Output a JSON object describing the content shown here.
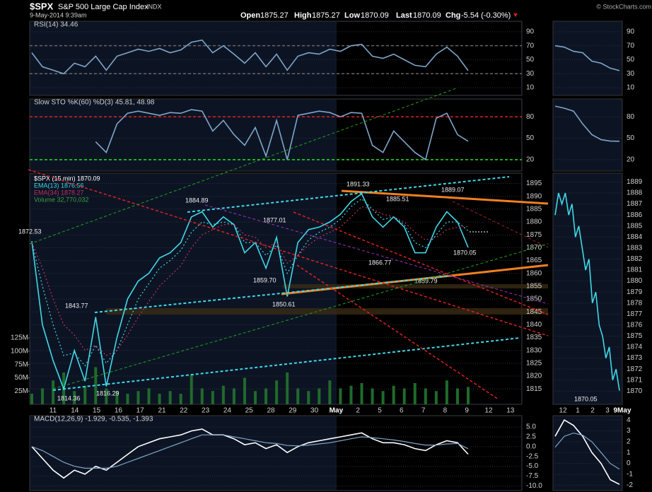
{
  "header": {
    "symbol": "$SPX",
    "name": "S&P 500 Large Cap Index",
    "exchange": "INDX",
    "date": "9-May-2014 9:39am",
    "quote": [
      [
        "Open",
        "1875.27"
      ],
      [
        "High",
        "1875.27"
      ],
      [
        "Low",
        "1870.09"
      ],
      [
        "Last",
        "1870.09"
      ],
      [
        "Chg",
        "-5.54 (-0.30%)"
      ]
    ],
    "credit": "© StockCharts.com"
  },
  "chart_data": [
    {
      "type": "line",
      "title": "RSI(14) 34.46",
      "ylim": [
        -1,
        105
      ],
      "yticks": [
        10,
        30,
        50,
        70,
        90
      ],
      "reference_lines": [
        {
          "value": 70,
          "color": "#666666"
        },
        {
          "value": 30,
          "color": "#666666"
        }
      ],
      "series": [
        {
          "color": "#7fa6c9",
          "values": [
            60,
            40,
            35,
            30,
            45,
            40,
            55,
            35,
            55,
            60,
            65,
            62,
            66,
            60,
            64,
            75,
            78,
            60,
            70,
            58,
            45,
            60,
            40,
            58,
            35,
            55,
            60,
            58,
            65,
            62,
            70,
            72,
            55,
            52,
            58,
            50,
            42,
            40,
            58,
            68,
            55,
            34.46
          ]
        }
      ]
    },
    {
      "type": "line",
      "title": "Slow STO %K(60) %D(3) 45.81, 48.98",
      "ylim": [
        4,
        105
      ],
      "yticks": [
        20,
        50,
        80
      ],
      "reference_lines": [
        {
          "value": 80,
          "color": "#e02020"
        },
        {
          "value": 20,
          "color": "#20e020"
        }
      ],
      "series": [
        {
          "color": "#7fa6c9",
          "values": [
            null,
            null,
            null,
            null,
            null,
            null,
            45,
            30,
            70,
            85,
            88,
            85,
            82,
            86,
            85,
            90,
            88,
            60,
            75,
            55,
            40,
            65,
            25,
            75,
            20,
            82,
            85,
            88,
            86,
            80,
            86,
            85,
            40,
            30,
            60,
            45,
            30,
            20,
            78,
            85,
            55,
            45.81
          ]
        }
      ]
    },
    {
      "type": "line",
      "legend": [
        "$SPX (15 min) 1870.09",
        "EMA(13) 1876.56",
        "EMA(34) 1878.27",
        "Volume 32,770,032"
      ],
      "ylim": [
        1809,
        1899
      ],
      "yticks": [
        1815,
        1820,
        1825,
        1830,
        1835,
        1840,
        1845,
        1850,
        1855,
        1860,
        1865,
        1870,
        1875,
        1880,
        1885,
        1890,
        1895
      ],
      "xaxis_labels": [
        "11",
        "14",
        "15",
        "16",
        "17",
        "21",
        "22",
        "23",
        "24",
        "25",
        "28",
        "29",
        "30",
        "May",
        "2",
        "5",
        "6",
        "7",
        "8",
        "9",
        "12",
        "13"
      ],
      "series": [
        {
          "color": "#40d8e8",
          "values": [
            1872.53,
            1840,
            1826,
            1815,
            1830,
            1818,
            1843,
            1816,
            1835,
            1850,
            1857,
            1860,
            1866,
            1868,
            1872,
            1882,
            1884,
            1878,
            1882,
            1879,
            1868,
            1872,
            1862,
            1874,
            1851,
            1872,
            1877,
            1878,
            1880,
            1883,
            1888,
            1891,
            1882,
            1878,
            1882,
            1878,
            1868,
            1868,
            1878,
            1884,
            1880,
            1870.09
          ]
        },
        {
          "color": "#40d8e8",
          "dash": "2,3",
          "values": [
            1872,
            1855,
            1840,
            1828,
            1829,
            1824,
            1832,
            1825,
            1830,
            1840,
            1850,
            1856,
            1862,
            1865,
            1869,
            1876,
            1880,
            1879,
            1880,
            1879,
            1872,
            1872,
            1867,
            1871,
            1860,
            1867,
            1873,
            1876,
            1878,
            1881,
            1886,
            1889,
            1885,
            1881,
            1882,
            1879,
            1872,
            1870,
            1875,
            1880,
            1880,
            1876.56
          ]
        },
        {
          "color": "#c03060",
          "dash": "2,3",
          "values": [
            1872,
            1862,
            1850,
            1840,
            1836,
            1830,
            1832,
            1828,
            1830,
            1836,
            1843,
            1849,
            1855,
            1859,
            1863,
            1870,
            1875,
            1877,
            1879,
            1879,
            1875,
            1874,
            1870,
            1872,
            1864,
            1867,
            1871,
            1874,
            1876,
            1878,
            1882,
            1886,
            1885,
            1883,
            1882,
            1880,
            1876,
            1873,
            1874,
            1877,
            1878,
            1878.27
          ]
        }
      ],
      "volume": {
        "color": "#1f6b2a",
        "ylim": [
          0,
          435000000
        ],
        "yticks": [
          {
            "value": 25000000,
            "label": "25M"
          },
          {
            "value": 50000000,
            "label": "50M"
          },
          {
            "value": 75000000,
            "label": "75M"
          },
          {
            "value": 100000000,
            "label": "100M"
          },
          {
            "value": 125000000,
            "label": "125M"
          }
        ],
        "values": [
          20000000,
          30000000,
          45000000,
          60000000,
          25000000,
          35000000,
          70000000,
          30000000,
          25000000,
          20000000,
          25000000,
          30000000,
          20000000,
          25000000,
          20000000,
          55000000,
          30000000,
          25000000,
          35000000,
          30000000,
          50000000,
          25000000,
          30000000,
          45000000,
          60000000,
          30000000,
          25000000,
          30000000,
          45000000,
          30000000,
          35000000,
          40000000,
          30000000,
          25000000,
          35000000,
          30000000,
          40000000,
          30000000,
          25000000,
          45000000,
          30000000,
          32770032
        ]
      },
      "annotations": [
        "1872.53",
        "1884.89",
        "1877.01",
        "1891.33",
        "1885.51",
        "1889.07",
        "1859.70",
        "1850.61",
        "1866.77",
        "1859.79",
        "1870.05",
        "1843.77",
        "1814.36",
        "1816.29"
      ]
    },
    {
      "type": "line",
      "title": "MACD(12,26,9) -1.929, -0.535, -1.393",
      "ylim": [
        -11.2,
        7.9
      ],
      "yticks": [
        {
          "value": -10,
          "label": "-10.0"
        },
        {
          "value": -7.5,
          "label": "-7.5"
        },
        {
          "value": -5,
          "label": "-5.0"
        },
        {
          "value": -2.5,
          "label": "-2.5"
        },
        {
          "value": 0,
          "label": "0.0"
        },
        2.5,
        {
          "value": 5,
          "label": "5.0"
        }
      ],
      "series": [
        {
          "color": "#ffffff",
          "values": [
            0,
            -3,
            -6,
            -8,
            -6,
            -7,
            -5,
            -6,
            -4,
            -2,
            0,
            1,
            2,
            2.5,
            3,
            4,
            4.5,
            3,
            3,
            2,
            0.5,
            1,
            -0.5,
            0.5,
            -1.5,
            0,
            1,
            1.5,
            2,
            2.5,
            3,
            3.5,
            2,
            1,
            1,
            0.5,
            -0.5,
            -1,
            0.5,
            1.5,
            1,
            -1.929
          ]
        },
        {
          "color": "#7fa6c9",
          "values": [
            0,
            -1,
            -2.5,
            -4,
            -5,
            -5.5,
            -5.5,
            -5.5,
            -5,
            -4,
            -3,
            -2,
            -1,
            0,
            1,
            2,
            3,
            3,
            3,
            2.5,
            2,
            1.5,
            1,
            0.8,
            0.3,
            0.2,
            0.4,
            0.7,
            1,
            1.5,
            2,
            2.5,
            2.3,
            2,
            1.7,
            1.3,
            0.8,
            0.4,
            0.4,
            0.7,
            0.8,
            -0.535
          ]
        }
      ]
    },
    {
      "type": "line",
      "ylim": [
        -1,
        105
      ],
      "yticks": [
        10,
        30,
        50,
        70,
        90
      ],
      "series": [
        {
          "color": "#7fa6c9",
          "values": [
            70,
            68,
            62,
            60,
            48,
            45,
            38,
            34.46
          ]
        }
      ]
    },
    {
      "type": "line",
      "ylim": [
        4,
        105
      ],
      "yticks": [
        20,
        50,
        80
      ],
      "series": [
        {
          "color": "#7fa6c9",
          "values": [
            95,
            92,
            88,
            70,
            55,
            48,
            46,
            45.81
          ]
        }
      ]
    },
    {
      "type": "line",
      "ylim": [
        1868.8,
        1889.8
      ],
      "yticks": [
        1870,
        1871,
        1872,
        1873,
        1874,
        1875,
        1876,
        1877,
        1878,
        1879,
        1880,
        1881,
        1882,
        1883,
        1884,
        1885,
        1886,
        1887,
        1888,
        1889
      ],
      "xaxis_labels": [
        "12",
        "1",
        "2",
        "3",
        "9May"
      ],
      "series": [
        {
          "color": "#40d8e8",
          "values": [
            1886,
            1888,
            1887,
            1888,
            1886,
            1887,
            1884,
            1885,
            1883,
            1881,
            1882,
            1878,
            1879,
            1876,
            1875,
            1873,
            1874,
            1871,
            1872,
            1870.05
          ]
        }
      ],
      "annotations": [
        "1870.05"
      ]
    },
    {
      "type": "line",
      "ylim": [
        -2.5,
        4.4
      ],
      "yticks": [
        -2,
        -1,
        0,
        1,
        2,
        3,
        4
      ],
      "series": [
        {
          "color": "#ffffff",
          "values": [
            2.5,
            4,
            3.5,
            2.5,
            1,
            0,
            -1.5,
            -1.929
          ]
        },
        {
          "color": "#7fa6c9",
          "values": [
            1.5,
            2.5,
            2.8,
            2.6,
            2,
            1,
            0,
            -0.535
          ]
        }
      ]
    }
  ]
}
